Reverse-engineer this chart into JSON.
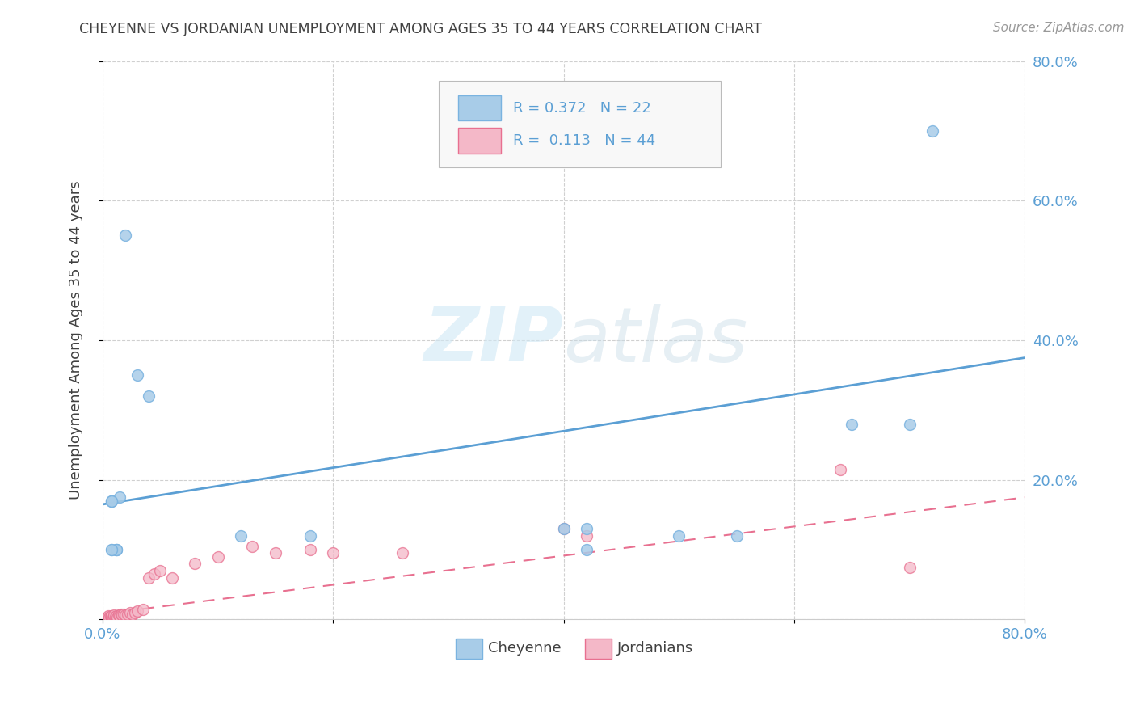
{
  "title": "CHEYENNE VS JORDANIAN UNEMPLOYMENT AMONG AGES 35 TO 44 YEARS CORRELATION CHART",
  "source": "Source: ZipAtlas.com",
  "ylabel": "Unemployment Among Ages 35 to 44 years",
  "xlim": [
    0.0,
    0.8
  ],
  "ylim": [
    0.0,
    0.8
  ],
  "xticks": [
    0.0,
    0.2,
    0.4,
    0.6,
    0.8
  ],
  "yticks": [
    0.0,
    0.2,
    0.4,
    0.6,
    0.8
  ],
  "xtick_labels": [
    "0.0%",
    "",
    "",
    "",
    "80.0%"
  ],
  "ytick_labels_right": [
    "",
    "20.0%",
    "40.0%",
    "60.0%",
    "80.0%"
  ],
  "watermark": "ZIPatlas",
  "cheyenne_color": "#a8cce8",
  "jordanian_color": "#f4b8c8",
  "cheyenne_edge": "#7ab3e0",
  "jordanian_edge": "#e87090",
  "cheyenne_R": 0.372,
  "cheyenne_N": 22,
  "jordanian_R": 0.113,
  "jordanian_N": 44,
  "cheyenne_x": [
    0.008,
    0.012,
    0.012,
    0.012,
    0.015,
    0.02,
    0.03,
    0.04,
    0.12,
    0.18,
    0.4,
    0.42,
    0.42,
    0.5,
    0.55,
    0.65,
    0.7,
    0.72,
    0.008,
    0.008,
    0.008,
    0.008
  ],
  "cheyenne_y": [
    0.17,
    0.1,
    0.1,
    0.1,
    0.175,
    0.55,
    0.35,
    0.32,
    0.12,
    0.12,
    0.13,
    0.1,
    0.13,
    0.12,
    0.12,
    0.28,
    0.28,
    0.7,
    0.17,
    0.17,
    0.1,
    0.1
  ],
  "jordanian_x": [
    0.002,
    0.003,
    0.004,
    0.005,
    0.005,
    0.006,
    0.006,
    0.007,
    0.008,
    0.008,
    0.008,
    0.009,
    0.01,
    0.01,
    0.011,
    0.012,
    0.013,
    0.014,
    0.015,
    0.016,
    0.017,
    0.018,
    0.02,
    0.022,
    0.024,
    0.026,
    0.028,
    0.03,
    0.035,
    0.04,
    0.045,
    0.05,
    0.06,
    0.08,
    0.1,
    0.13,
    0.15,
    0.18,
    0.2,
    0.26,
    0.4,
    0.42,
    0.64,
    0.7
  ],
  "jordanian_y": [
    0.002,
    0.002,
    0.003,
    0.004,
    0.005,
    0.002,
    0.003,
    0.004,
    0.003,
    0.004,
    0.005,
    0.003,
    0.004,
    0.006,
    0.004,
    0.005,
    0.003,
    0.006,
    0.005,
    0.007,
    0.006,
    0.008,
    0.006,
    0.008,
    0.01,
    0.008,
    0.01,
    0.012,
    0.015,
    0.06,
    0.065,
    0.07,
    0.06,
    0.08,
    0.09,
    0.105,
    0.095,
    0.1,
    0.095,
    0.095,
    0.13,
    0.12,
    0.215,
    0.075
  ],
  "background_color": "#ffffff",
  "grid_color": "#d0d0d0",
  "title_color": "#404040",
  "axis_color": "#5b9fd4",
  "marker_size": 100,
  "cheyenne_line_color": "#5b9fd4",
  "jordanian_line_color": "#e87090",
  "cheyenne_line_start_x": 0.0,
  "cheyenne_line_start_y": 0.165,
  "cheyenne_line_end_x": 0.8,
  "cheyenne_line_end_y": 0.375,
  "jordanian_line_start_x": 0.0,
  "jordanian_line_start_y": 0.008,
  "jordanian_line_end_x": 0.8,
  "jordanian_line_end_y": 0.175
}
